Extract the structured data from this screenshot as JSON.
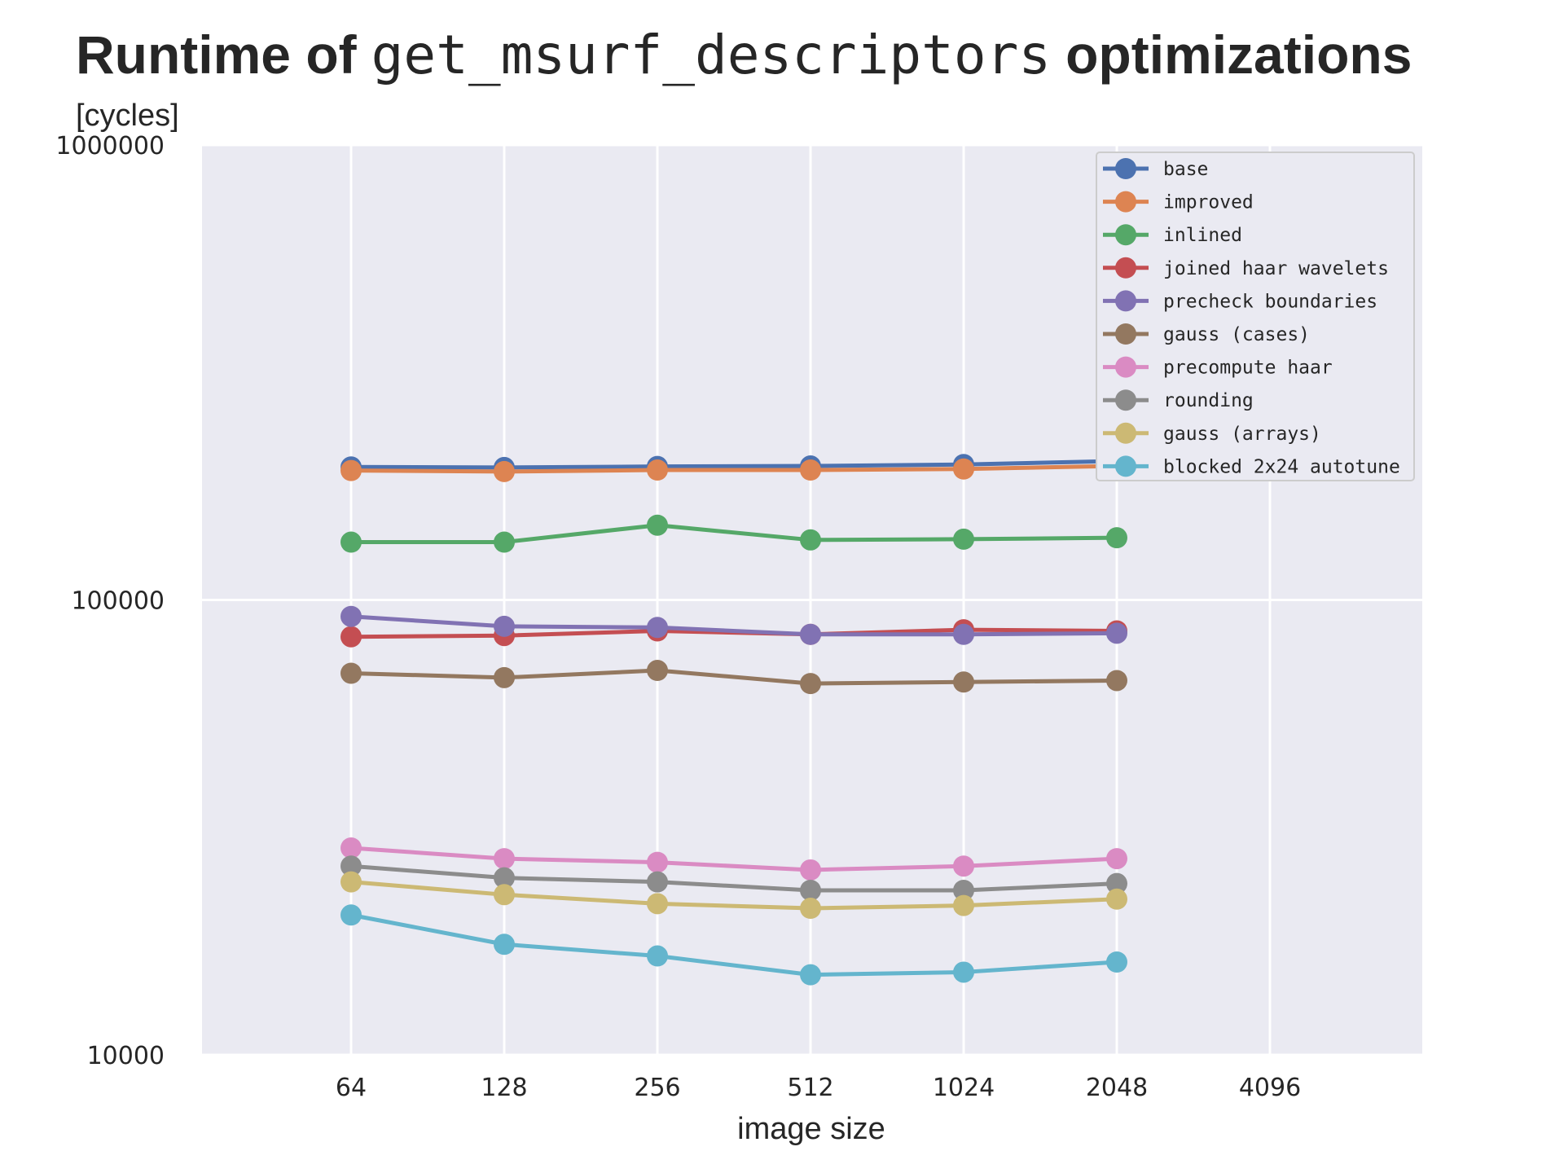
{
  "chart_data": {
    "type": "line",
    "title": {
      "prefix": "Runtime of",
      "code": "get_msurf_descriptors",
      "suffix": "optimizations"
    },
    "ylabel": "[cycles]",
    "xlabel": "image size",
    "y_scale": "log",
    "ylim": [
      10000,
      1000000
    ],
    "y_ticks": [
      "10000",
      "100000",
      "1000000"
    ],
    "x_ticks": [
      "64",
      "128",
      "256",
      "512",
      "1024",
      "2048",
      "4096"
    ],
    "x": [
      64,
      128,
      256,
      512,
      1024,
      2048
    ],
    "grid": true,
    "legend_position": "top-right",
    "series": [
      {
        "name": "base",
        "color": "#4c72b0",
        "values": [
          196000,
          195500,
          196500,
          197000,
          198500,
          202000
        ]
      },
      {
        "name": "improved",
        "color": "#dd8452",
        "values": [
          192500,
          191500,
          193000,
          193000,
          194000,
          197000
        ]
      },
      {
        "name": "inlined",
        "color": "#55a868",
        "values": [
          134000,
          134000,
          146000,
          135500,
          136000,
          137000
        ]
      },
      {
        "name": "joined haar wavelets",
        "color": "#c44e52",
        "values": [
          83000,
          83500,
          85500,
          84000,
          86000,
          85500
        ]
      },
      {
        "name": "precheck boundaries",
        "color": "#8172b3",
        "values": [
          92000,
          87500,
          87000,
          84000,
          84000,
          84500
        ]
      },
      {
        "name": "gauss (cases)",
        "color": "#937860",
        "values": [
          69000,
          67500,
          70000,
          65500,
          66000,
          66500
        ]
      },
      {
        "name": "precompute haar",
        "color": "#da8bc3",
        "values": [
          28500,
          27000,
          26500,
          25500,
          26000,
          27000
        ]
      },
      {
        "name": "rounding",
        "color": "#8c8c8c",
        "values": [
          26000,
          24500,
          24000,
          23000,
          23000,
          23800
        ]
      },
      {
        "name": "gauss (arrays)",
        "color": "#ccb974",
        "values": [
          24000,
          22500,
          21500,
          21000,
          21300,
          22000
        ]
      },
      {
        "name": "blocked 2x24 autotune",
        "color": "#64b5cd",
        "values": [
          20300,
          17500,
          16500,
          15000,
          15200,
          16000
        ]
      }
    ]
  }
}
